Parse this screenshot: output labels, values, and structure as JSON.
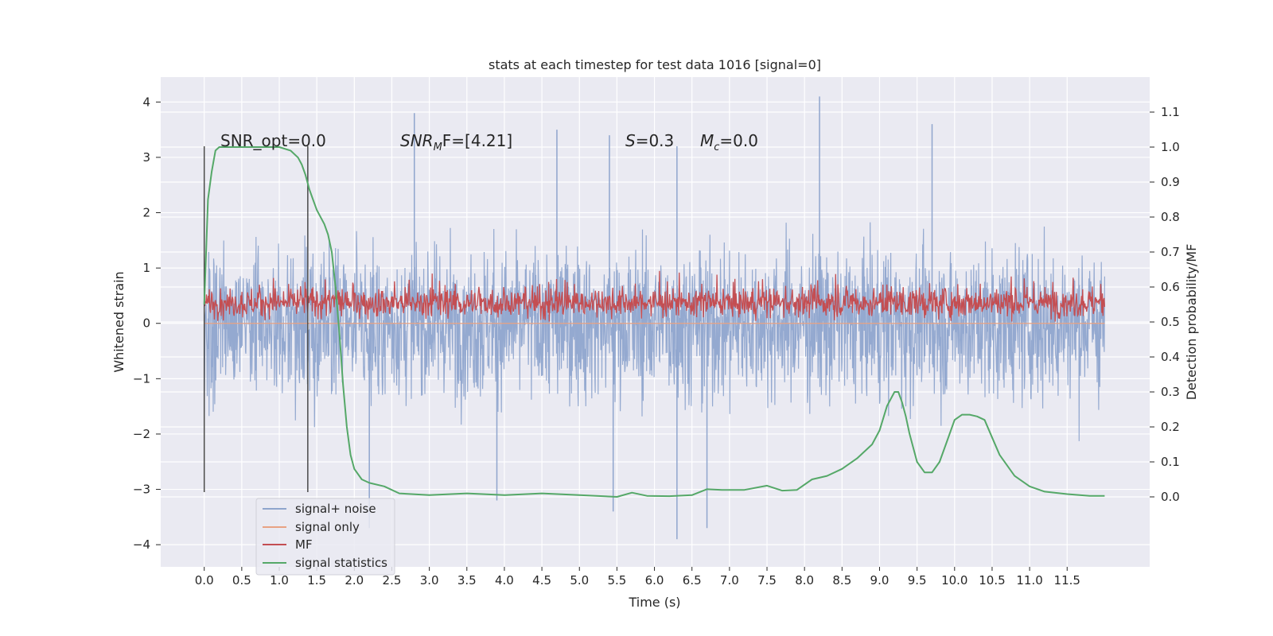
{
  "chart_data": {
    "type": "line",
    "title": "stats at each timestep for test data 1016 [signal=0]",
    "xlabel": "Time (s)",
    "ylabel": "Whitened strain",
    "ylabel_right": "Detection probability/MF",
    "xlim": [
      -0.58,
      12.6
    ],
    "ylim": [
      -4.4,
      4.45
    ],
    "ylim_right": [
      -0.2,
      1.2
    ],
    "x_ticks": [
      "0.0",
      "0.5",
      "1.0",
      "1.5",
      "2.0",
      "2.5",
      "3.0",
      "3.5",
      "4.0",
      "4.5",
      "5.0",
      "5.5",
      "6.0",
      "6.5",
      "7.0",
      "7.5",
      "8.0",
      "8.5",
      "9.0",
      "9.5",
      "10.0",
      "10.5",
      "11.0",
      "11.5"
    ],
    "y_ticks": [
      "4",
      "3",
      "2",
      "1",
      "0",
      "−1",
      "−2",
      "−3",
      "−4"
    ],
    "y_ticks_right": [
      "1.1",
      "1.0",
      "0.9",
      "0.8",
      "0.7",
      "0.6",
      "0.5",
      "0.4",
      "0.3",
      "0.2",
      "0.1",
      "0.0"
    ],
    "grid": true,
    "legend_placement": "lower-left",
    "annotations": [
      {
        "text": "SNR_opt=0.0",
        "x": 0.2,
        "y": 3.2
      },
      {
        "text_math": "SNR",
        "text_sub": "M",
        "text_rest": "F=[4.21]",
        "x": 2.6,
        "y": 3.2
      },
      {
        "text_math": "S",
        "text_rest": "=0.3",
        "x": 5.6,
        "y": 3.2
      },
      {
        "text_math": "M",
        "text_sub": "c",
        "text_rest": "=0.0",
        "x": 6.6,
        "y": 3.2
      }
    ],
    "vlines": [
      {
        "x": 0.0,
        "ymin": -3.05,
        "ymax": 3.2
      },
      {
        "x": 1.38,
        "ymin": -3.05,
        "ymax": 3.2
      }
    ],
    "series": [
      {
        "name": "signal+ noise",
        "color": "#8fa5cd",
        "description_values": "whitened strain noise, roughly -2.7 to +2.7 with spikes",
        "x_range": [
          0.0,
          12.0
        ],
        "spikes": [
          {
            "x": 2.8,
            "y": 3.8
          },
          {
            "x": 4.7,
            "y": 3.5
          },
          {
            "x": 5.4,
            "y": 3.4
          },
          {
            "x": 6.3,
            "y": 3.2
          },
          {
            "x": 8.2,
            "y": 4.1
          },
          {
            "x": 9.7,
            "y": 3.6
          },
          {
            "x": 6.3,
            "y": -3.9
          },
          {
            "x": 5.45,
            "y": -3.4
          },
          {
            "x": 6.7,
            "y": -3.7
          },
          {
            "x": 3.9,
            "y": -3.2
          },
          {
            "x": 2.2,
            "y": -3.7
          }
        ]
      },
      {
        "name": "signal only",
        "color": "#e8a283",
        "x": [
          0.0,
          12.0
        ],
        "y": [
          0.0,
          0.0
        ]
      },
      {
        "name": "MF",
        "color": "#c44e52",
        "axis": "right",
        "description_values": "matched filter output around 0.55 with noise between 0.5 and 0.65",
        "x_range": [
          0.0,
          12.0
        ]
      },
      {
        "name": "signal statistics",
        "color": "#55a868",
        "axis": "right",
        "x": [
          0.0,
          0.05,
          0.1,
          0.15,
          0.2,
          0.3,
          0.5,
          0.8,
          1.0,
          1.15,
          1.25,
          1.3,
          1.35,
          1.4,
          1.45,
          1.5,
          1.6,
          1.65,
          1.7,
          1.75,
          1.8,
          1.85,
          1.9,
          1.95,
          2.0,
          2.1,
          2.2,
          2.4,
          2.6,
          3.0,
          3.5,
          4.0,
          4.5,
          5.0,
          5.5,
          5.7,
          5.9,
          6.2,
          6.5,
          6.7,
          6.9,
          7.2,
          7.5,
          7.7,
          7.9,
          8.1,
          8.3,
          8.5,
          8.7,
          8.9,
          9.0,
          9.1,
          9.2,
          9.25,
          9.3,
          9.35,
          9.4,
          9.5,
          9.6,
          9.7,
          9.8,
          9.9,
          10.0,
          10.1,
          10.2,
          10.3,
          10.4,
          10.5,
          10.6,
          10.8,
          11.0,
          11.2,
          11.5,
          11.8,
          12.0
        ],
        "y": [
          0.55,
          0.85,
          0.93,
          0.99,
          1.0,
          1.0,
          1.0,
          1.0,
          1.0,
          0.99,
          0.97,
          0.95,
          0.92,
          0.88,
          0.85,
          0.82,
          0.78,
          0.75,
          0.7,
          0.6,
          0.47,
          0.32,
          0.2,
          0.12,
          0.08,
          0.05,
          0.04,
          0.03,
          0.01,
          0.005,
          0.01,
          0.005,
          0.01,
          0.005,
          0.0,
          0.012,
          0.003,
          0.002,
          0.005,
          0.022,
          0.02,
          0.02,
          0.032,
          0.018,
          0.02,
          0.05,
          0.06,
          0.08,
          0.11,
          0.15,
          0.19,
          0.26,
          0.3,
          0.3,
          0.27,
          0.23,
          0.18,
          0.1,
          0.07,
          0.07,
          0.1,
          0.16,
          0.22,
          0.235,
          0.235,
          0.23,
          0.22,
          0.17,
          0.12,
          0.06,
          0.03,
          0.015,
          0.008,
          0.003,
          0.003
        ]
      }
    ]
  }
}
